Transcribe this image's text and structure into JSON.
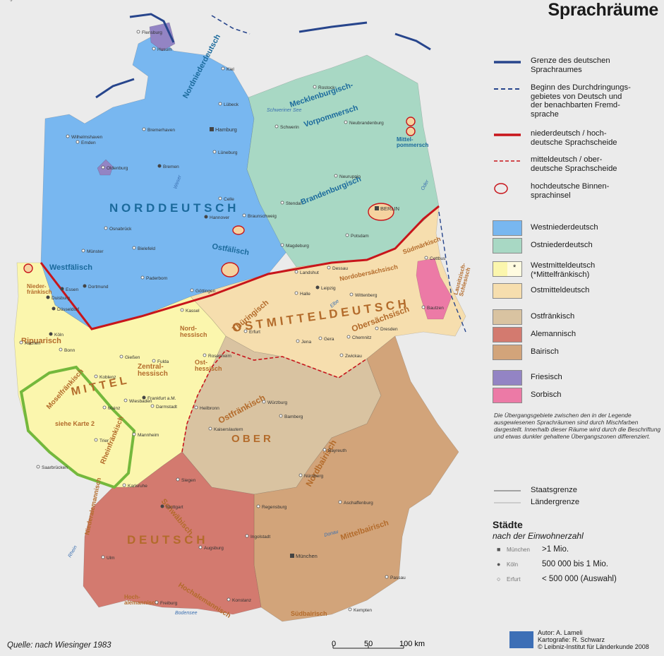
{
  "title": "Sprachräume",
  "colors": {
    "westniederdeutsch": "#78b7f0",
    "ostniederdeutsch": "#a8d8c4",
    "westmitteldeutsch": "#fbf6ad",
    "ostmitteldeutsch": "#f6deae",
    "ostfraenkisch": "#d9c3a1",
    "alemannisch": "#d37a6f",
    "bairisch": "#d2a47a",
    "friesisch": "#9384c4",
    "sorbisch": "#ec7aa6",
    "sea": "#ffffff",
    "background": "#ebebeb",
    "grenze": "#27458c",
    "scheide": "#c8151b",
    "karte2": "#74b83c"
  },
  "legend": {
    "lines": [
      {
        "icon": "solid-blue-line-icon",
        "label": "Grenze des deutschen\nSprachraumes"
      },
      {
        "icon": "dashed-blue-line-icon",
        "label": "Beginn des Durchdringungs-\ngebietes von Deutsch und\nder benachbarten Fremd-\nsprache"
      },
      {
        "icon": "solid-red-line-icon",
        "label": "niederdeutsch / hoch-\ndeutsche Sprachscheide"
      },
      {
        "icon": "dashed-red-line-icon",
        "label": "mitteldeutsch / ober-\ndeutsche Sprachscheide"
      },
      {
        "icon": "red-ring-icon",
        "label": "hochdeutsche Binnen-\nsprachinsel"
      }
    ],
    "areas": [
      {
        "key": "westniederdeutsch",
        "label": "Westniederdeutsch"
      },
      {
        "key": "ostniederdeutsch",
        "label": "Ostniederdeutsch"
      },
      {
        "key": "westmitteldeutsch",
        "label": "Westmitteldeutsch\n(*Mittelfränkisch)",
        "marker": "*"
      },
      {
        "key": "ostmitteldeutsch",
        "label": "Ostmitteldeutsch"
      },
      {
        "key": "ostfraenkisch",
        "label": "Ostfränkisch"
      },
      {
        "key": "alemannisch",
        "label": "Alemannisch"
      },
      {
        "key": "bairisch",
        "label": "Bairisch"
      },
      {
        "key": "friesisch",
        "label": "Friesisch"
      },
      {
        "key": "sorbisch",
        "label": "Sorbisch"
      }
    ],
    "note": "Die Übergangsgebiete zwischen den in der Legende ausgewiesenen Sprachräumen sind durch Mischfarben dargestellt. Innerhalb dieser Räume wird durch die Beschriftung und etwas dunkler gehaltene Übergangszonen differenziert.",
    "borders": [
      {
        "label": "Staatsgrenze"
      },
      {
        "label": "Ländergrenze"
      }
    ]
  },
  "cities_legend": {
    "heading": "Städte",
    "subheading": "nach der Einwohnerzahl",
    "rows": [
      {
        "symbol": "■",
        "example": "München",
        "value": ">1 Mio."
      },
      {
        "symbol": "●",
        "example": "Köln",
        "value": "500 000  bis 1 Mio."
      },
      {
        "symbol": "○",
        "example": "Erfurt",
        "value": "< 500 000 (Auswahl)"
      }
    ]
  },
  "map_labels": {
    "regions": [
      {
        "text": "N O R D D E U T S C H"
      },
      {
        "text": "Nordniederdeutsch"
      },
      {
        "text": "Westfälisch"
      },
      {
        "text": "Ostfälisch"
      },
      {
        "text": "Mecklenburgisch-"
      },
      {
        "text": "Vorpommersch"
      },
      {
        "text": "Brandenburgisch"
      },
      {
        "text": "Mittel-\npommersch"
      },
      {
        "text": "Südmärkisch"
      },
      {
        "text": "Nordobersächsisch"
      },
      {
        "text": "O S T M I T T E L D E U T S C H"
      },
      {
        "text": "Obersächsisch"
      },
      {
        "text": "Thüringisch"
      },
      {
        "text": "Nord-\nhessisch"
      },
      {
        "text": "Zentral-\nhessisch"
      },
      {
        "text": "Ost-\nhessisch"
      },
      {
        "text": "M I T T E L"
      },
      {
        "text": "Ripuarisch"
      },
      {
        "text": "Moselfränkisch"
      },
      {
        "text": "Rheinfränkisch"
      },
      {
        "text": "Nieder-\nfränkisch"
      },
      {
        "text": "Ostfränkisch"
      },
      {
        "text": "O B E R"
      },
      {
        "text": "Nordbairisch"
      },
      {
        "text": "Schwäbisch"
      },
      {
        "text": "D E U T S C H"
      },
      {
        "text": "Mittelbairisch"
      },
      {
        "text": "Südbairisch"
      },
      {
        "text": "Niederalemannisch"
      },
      {
        "text": "Hochalemannisch"
      },
      {
        "text": "Lausitzisch-\nSchlesisch"
      },
      {
        "text": "siehe Karte 2"
      },
      {
        "text": "Hoch-\nalemannisch"
      }
    ],
    "cities": [
      {
        "name": "Hamburg",
        "size": "big"
      },
      {
        "name": "BERLIN",
        "size": "big"
      },
      {
        "name": "München",
        "size": "big"
      },
      {
        "name": "Köln",
        "size": "mid"
      },
      {
        "name": "Essen",
        "size": "mid"
      },
      {
        "name": "Dortmund",
        "size": "mid"
      },
      {
        "name": "Düsseldorf",
        "size": "mid"
      },
      {
        "name": "Duisburg",
        "size": "mid"
      },
      {
        "name": "Bremen",
        "size": "mid"
      },
      {
        "name": "Hannover",
        "size": "mid"
      },
      {
        "name": "Leipzig",
        "size": "mid"
      },
      {
        "name": "Dresden",
        "size": "small"
      },
      {
        "name": "Frankfurt a.M.",
        "size": "mid"
      },
      {
        "name": "Stuttgart",
        "size": "mid"
      },
      {
        "name": "Nürnberg",
        "size": "small"
      },
      {
        "name": "Kiel",
        "size": "small"
      },
      {
        "name": "Lübeck",
        "size": "small"
      },
      {
        "name": "Rostock",
        "size": "small"
      },
      {
        "name": "Schwerin",
        "size": "small"
      },
      {
        "name": "Magdeburg",
        "size": "small"
      },
      {
        "name": "Erfurt",
        "size": "small"
      },
      {
        "name": "Halle",
        "size": "small"
      },
      {
        "name": "Kassel",
        "size": "small"
      },
      {
        "name": "Münster",
        "size": "small"
      },
      {
        "name": "Bielefeld",
        "size": "small"
      },
      {
        "name": "Osnabrück",
        "size": "small"
      },
      {
        "name": "Oldenburg",
        "size": "small"
      },
      {
        "name": "Emden",
        "size": "small"
      },
      {
        "name": "Bremerhaven",
        "size": "small"
      },
      {
        "name": "Wilhelmshaven",
        "size": "small"
      },
      {
        "name": "Husum",
        "size": "small"
      },
      {
        "name": "Flensburg",
        "size": "small"
      },
      {
        "name": "Neubrandenburg",
        "size": "small"
      },
      {
        "name": "Neuruppin",
        "size": "small"
      },
      {
        "name": "Stendal",
        "size": "small"
      },
      {
        "name": "Potsdam",
        "size": "small"
      },
      {
        "name": "Cottbus",
        "size": "small"
      },
      {
        "name": "Bautzen",
        "size": "small"
      },
      {
        "name": "Chemnitz",
        "size": "small"
      },
      {
        "name": "Zwickau",
        "size": "small"
      },
      {
        "name": "Gera",
        "size": "small"
      },
      {
        "name": "Jena",
        "size": "small"
      },
      {
        "name": "Göttingen",
        "size": "small"
      },
      {
        "name": "Braunschweig",
        "size": "small"
      },
      {
        "name": "Celle",
        "size": "small"
      },
      {
        "name": "Lüneburg",
        "size": "small"
      },
      {
        "name": "Paderborn",
        "size": "small"
      },
      {
        "name": "Aachen",
        "size": "small"
      },
      {
        "name": "Bonn",
        "size": "small"
      },
      {
        "name": "Koblenz",
        "size": "small"
      },
      {
        "name": "Wiesbaden",
        "size": "small"
      },
      {
        "name": "Mainz",
        "size": "small"
      },
      {
        "name": "Darmstadt",
        "size": "small"
      },
      {
        "name": "Mannheim",
        "size": "small"
      },
      {
        "name": "Karlsruhe",
        "size": "small"
      },
      {
        "name": "Saarbrücken",
        "size": "small"
      },
      {
        "name": "Trier",
        "size": "small"
      },
      {
        "name": "Kaiserslautern",
        "size": "small"
      },
      {
        "name": "Würzburg",
        "size": "small"
      },
      {
        "name": "Bamberg",
        "size": "small"
      },
      {
        "name": "Bayreuth",
        "size": "small"
      },
      {
        "name": "Regensburg",
        "size": "small"
      },
      {
        "name": "Ingolstadt",
        "size": "small"
      },
      {
        "name": "Augsburg",
        "size": "small"
      },
      {
        "name": "Ulm",
        "size": "small"
      },
      {
        "name": "Freiburg",
        "size": "small"
      },
      {
        "name": "Konstanz",
        "size": "small"
      },
      {
        "name": "Kempten",
        "size": "small"
      },
      {
        "name": "Passau",
        "size": "small"
      },
      {
        "name": "Rosenheim",
        "size": "small"
      },
      {
        "name": "Fulda",
        "size": "small"
      },
      {
        "name": "Gießen",
        "size": "small"
      },
      {
        "name": "Siegen",
        "size": "small"
      },
      {
        "name": "Heilbronn",
        "size": "small"
      },
      {
        "name": "Aschaffenburg",
        "size": "small"
      },
      {
        "name": "Landshut",
        "size": "small"
      },
      {
        "name": "Dessau",
        "size": "small"
      },
      {
        "name": "Wittenberg",
        "size": "small"
      },
      {
        "name": "Torgau",
        "size": "small"
      }
    ],
    "water": [
      {
        "text": "Bodensee"
      },
      {
        "text": "Rhein"
      },
      {
        "text": "Elbe"
      },
      {
        "text": "Donau"
      },
      {
        "text": "Oder"
      },
      {
        "text": "Weser"
      },
      {
        "text": "Schweriner See"
      }
    ]
  },
  "source": "Quelle: nach Wiesinger 1983",
  "scale": {
    "ticks": [
      "0",
      "50",
      "100 km"
    ]
  },
  "credits": {
    "author": "Autor: A. Lameli",
    "cartography": "Kartografie: R. Schwarz",
    "copyright": "© Leibniz-Institut für Länderkunde 2008"
  }
}
